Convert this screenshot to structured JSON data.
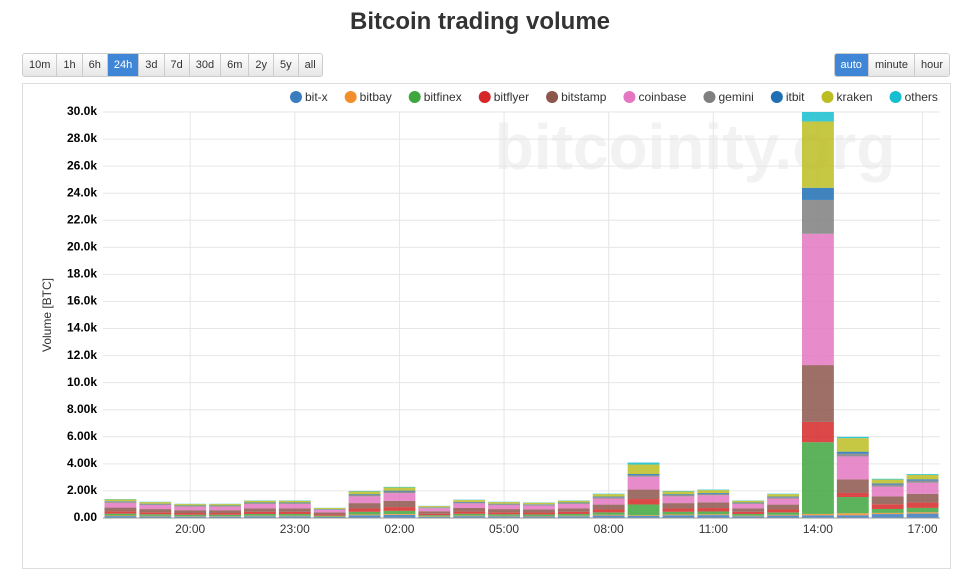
{
  "header": {
    "title": "Bitcoin trading volume"
  },
  "ranges": {
    "options": [
      "10m",
      "1h",
      "6h",
      "24h",
      "3d",
      "7d",
      "30d",
      "6m",
      "2y",
      "5y",
      "all"
    ],
    "selected": 3
  },
  "resolution": {
    "options": [
      "auto",
      "minute",
      "hour"
    ],
    "selected": 0
  },
  "chart_data": {
    "type": "stacked_bar",
    "ylabel": "Volume [BTC]",
    "watermark": "bitcoinity.org",
    "categories": [
      null,
      null,
      "20:00",
      null,
      null,
      "23:00",
      null,
      null,
      "02:00",
      null,
      null,
      "05:00",
      null,
      null,
      "08:00",
      null,
      null,
      "11:00",
      null,
      null,
      "14:00",
      null,
      null,
      "17:00"
    ],
    "ylim": [
      0,
      30000
    ],
    "yticks": [
      {
        "value": 0,
        "label": "0.00"
      },
      {
        "value": 2000,
        "label": "2.00k"
      },
      {
        "value": 4000,
        "label": "4.00k"
      },
      {
        "value": 6000,
        "label": "6.00k"
      },
      {
        "value": 8000,
        "label": "8.00k"
      },
      {
        "value": 10000,
        "label": "10.0k"
      },
      {
        "value": 12000,
        "label": "12.0k"
      },
      {
        "value": 14000,
        "label": "14.0k"
      },
      {
        "value": 16000,
        "label": "16.0k"
      },
      {
        "value": 18000,
        "label": "18.0k"
      },
      {
        "value": 20000,
        "label": "20.0k"
      },
      {
        "value": 22000,
        "label": "22.0k"
      },
      {
        "value": 24000,
        "label": "24.0k"
      },
      {
        "value": 26000,
        "label": "26.0k"
      },
      {
        "value": 28000,
        "label": "28.0k"
      },
      {
        "value": 30000,
        "label": "30.0k"
      }
    ],
    "grid": true,
    "series": [
      {
        "name": "bit-x",
        "color": "#3a7dbf",
        "values": [
          140,
          120,
          105,
          105,
          130,
          130,
          75,
          200,
          230,
          90,
          135,
          120,
          115,
          130,
          180,
          150,
          200,
          210,
          130,
          180,
          200,
          200,
          290,
          325
        ]
      },
      {
        "name": "bitbay",
        "color": "#f28e2b",
        "values": [
          42,
          36,
          32,
          32,
          39,
          39,
          23,
          60,
          69,
          27,
          41,
          36,
          35,
          39,
          54,
          50,
          60,
          63,
          39,
          54,
          100,
          150,
          87,
          98
        ]
      },
      {
        "name": "bitfinex",
        "color": "#3fa63f",
        "values": [
          140,
          120,
          105,
          105,
          130,
          130,
          75,
          200,
          230,
          90,
          135,
          120,
          115,
          130,
          180,
          800,
          200,
          210,
          130,
          180,
          5300,
          1200,
          290,
          325
        ]
      },
      {
        "name": "bitflyer",
        "color": "#d62728",
        "values": [
          168,
          144,
          126,
          126,
          156,
          156,
          90,
          240,
          276,
          108,
          162,
          144,
          138,
          156,
          216,
          400,
          240,
          252,
          156,
          216,
          1500,
          300,
          348,
          390
        ]
      },
      {
        "name": "bitstamp",
        "color": "#8c564b",
        "values": [
          280,
          240,
          210,
          210,
          260,
          260,
          150,
          400,
          460,
          180,
          270,
          240,
          230,
          260,
          360,
          700,
          400,
          420,
          260,
          360,
          4200,
          1000,
          580,
          650
        ]
      },
      {
        "name": "coinbase",
        "color": "#e377c2",
        "values": [
          350,
          300,
          262,
          262,
          325,
          325,
          188,
          500,
          575,
          225,
          338,
          300,
          288,
          325,
          450,
          950,
          500,
          525,
          325,
          450,
          9700,
          1700,
          725,
          812
        ]
      },
      {
        "name": "gemini",
        "color": "#7f7f7f",
        "values": [
          70,
          60,
          52,
          52,
          65,
          65,
          38,
          100,
          115,
          45,
          68,
          60,
          58,
          65,
          90,
          100,
          100,
          105,
          65,
          90,
          2500,
          200,
          145,
          162
        ]
      },
      {
        "name": "itbit",
        "color": "#1f6fb4",
        "values": [
          42,
          36,
          32,
          32,
          39,
          39,
          23,
          60,
          69,
          27,
          41,
          36,
          35,
          39,
          54,
          100,
          60,
          63,
          39,
          54,
          900,
          150,
          87,
          98
        ]
      },
      {
        "name": "kraken",
        "color": "#bcbd22",
        "values": [
          140,
          120,
          105,
          105,
          130,
          130,
          75,
          200,
          230,
          90,
          135,
          120,
          115,
          130,
          180,
          700,
          200,
          210,
          130,
          180,
          4900,
          1000,
          290,
          325
        ]
      },
      {
        "name": "others",
        "color": "#17becf",
        "values": [
          28,
          24,
          21,
          21,
          26,
          26,
          15,
          40,
          46,
          18,
          27,
          24,
          23,
          26,
          36,
          150,
          40,
          42,
          26,
          36,
          700,
          100,
          58,
          65
        ]
      }
    ]
  }
}
